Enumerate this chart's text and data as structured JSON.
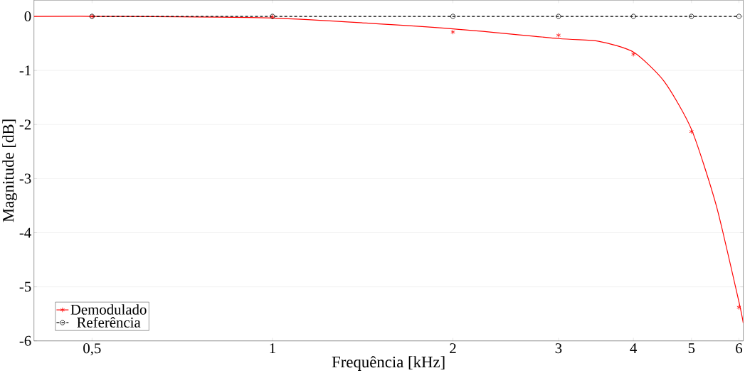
{
  "chart_data": {
    "type": "line",
    "xlabel": "Frequência [kHz]",
    "ylabel": "Magnitude [dB]",
    "log": "x",
    "xlim": [
      0.4,
      6.1
    ],
    "ylim": [
      -6,
      0.3
    ],
    "xticks": [
      {
        "value": 0.5,
        "label": "0,5"
      },
      1,
      2,
      3,
      4,
      5,
      6
    ],
    "yticks": [
      -6,
      -5,
      -4,
      -3,
      -2,
      -1,
      0
    ],
    "grid": "y",
    "legend": "bottom left",
    "series": [
      {
        "color": "#ff0000",
        "line_style": "solid",
        "marker": "none",
        "x": [
          0.4,
          0.5,
          1,
          2,
          3,
          3.5,
          4,
          4.5,
          5,
          5.5,
          6,
          6.1
        ],
        "values": [
          0,
          0,
          -0.03,
          -0.23,
          -0.41,
          -0.46,
          -0.66,
          -1.2,
          -2.09,
          -3.5,
          -5.28,
          -5.67
        ]
      },
      {
        "type": "scatter",
        "name": "Demodulado",
        "color": "#ff0000",
        "marker": "cross",
        "x": [
          0.5,
          1,
          2,
          3,
          4,
          5,
          6
        ],
        "values": [
          0,
          -0.01,
          -0.29,
          -0.35,
          -0.7,
          -2.13,
          -5.38
        ]
      },
      {
        "type": "line",
        "name": "Referência",
        "color": "#000000",
        "line_style": "dashed",
        "marker": "circle",
        "x": [
          0.5,
          1,
          2,
          3,
          4,
          5,
          6
        ],
        "values": [
          0,
          0,
          0,
          0,
          0,
          0,
          0
        ]
      }
    ]
  }
}
